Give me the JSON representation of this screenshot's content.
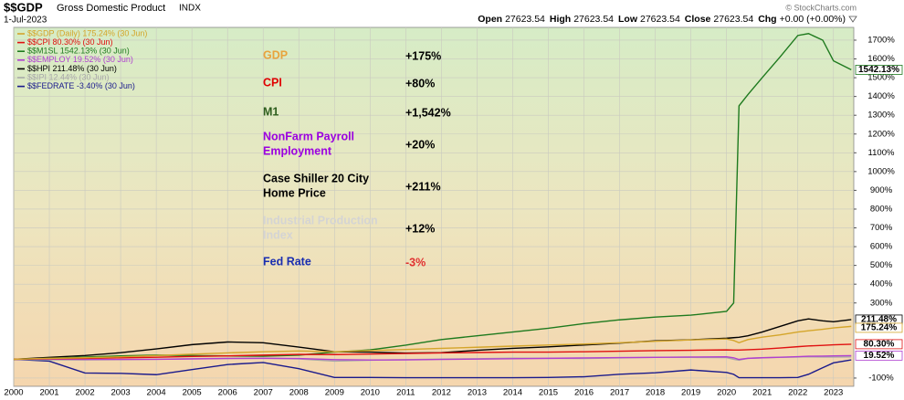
{
  "chart_data": {
    "type": "line",
    "title": "$$GDP",
    "subtitle": "Gross Domestic Product",
    "exchange": "INDX",
    "date": "1-Jul-2023",
    "credit": "© StockCharts.com",
    "quote": [
      {
        "label": "Open",
        "text": "27623.54"
      },
      {
        "label": "High",
        "text": "27623.54"
      },
      {
        "label": "Low",
        "text": "27623.54"
      },
      {
        "label": "Close",
        "text": "27623.54"
      },
      {
        "label": "Chg",
        "text": "+0.00 (+0.00%)"
      }
    ],
    "x": [
      2000,
      2001,
      2002,
      2003,
      2004,
      2005,
      2006,
      2007,
      2008,
      2009,
      2010,
      2011,
      2012,
      2013,
      2014,
      2015,
      2016,
      2017,
      2018,
      2019,
      2020,
      2020.2,
      2020.35,
      2020.6,
      2021,
      2021.5,
      2022,
      2022.3,
      2022.7,
      2023,
      2023.5
    ],
    "xlim": [
      2000,
      2023.57
    ],
    "xticks": [
      2000,
      2001,
      2002,
      2003,
      2004,
      2005,
      2006,
      2007,
      2008,
      2009,
      2010,
      2011,
      2012,
      2013,
      2014,
      2015,
      2016,
      2017,
      2018,
      2019,
      2020,
      2021,
      2022,
      2023
    ],
    "ylim": [
      -144,
      1768
    ],
    "yticks": [
      {
        "value": -100,
        "label": "-100%"
      },
      {
        "value": 300,
        "label": "300%"
      },
      {
        "value": 400,
        "label": "400%"
      },
      {
        "value": 500,
        "label": "500%"
      },
      {
        "value": 600,
        "label": "600%"
      },
      {
        "value": 700,
        "label": "700%"
      },
      {
        "value": 800,
        "label": "800%"
      },
      {
        "value": 900,
        "label": "900%"
      },
      {
        "value": 1000,
        "label": "1000%"
      },
      {
        "value": 1100,
        "label": "1100%"
      },
      {
        "value": 1200,
        "label": "1200%"
      },
      {
        "value": 1300,
        "label": "1300%"
      },
      {
        "value": 1400,
        "label": "1400%"
      },
      {
        "value": 1500,
        "label": "1500%"
      },
      {
        "value": 1600,
        "label": "1600%"
      },
      {
        "value": 1700,
        "label": "1700%"
      }
    ],
    "grid": true,
    "series": [
      {
        "name": "$$GDP (Daily) 175.24% (30 Jun)",
        "color": "#d4a52a",
        "values": [
          0,
          5,
          8,
          13,
          20,
          27,
          34,
          40,
          44,
          40,
          46,
          52,
          58,
          64,
          70,
          76,
          81,
          88,
          96,
          103,
          108,
          100,
          88,
          105,
          118,
          130,
          145,
          152,
          160,
          167,
          175.24
        ],
        "value_labels": [
          null,
          null,
          null,
          null,
          null,
          null,
          null,
          null,
          null,
          null,
          null,
          null,
          null,
          null,
          null,
          null,
          null,
          null,
          null,
          null,
          null,
          null,
          null,
          null,
          null,
          null,
          null,
          null,
          null,
          null,
          "175.24%"
        ]
      },
      {
        "name": "$$CPI 80.30% (30 Jun)",
        "color": "#e01010",
        "values": [
          0,
          3,
          5,
          8,
          11,
          15,
          18,
          22,
          26,
          25,
          28,
          31,
          34,
          36,
          38,
          38,
          40,
          43,
          46,
          48,
          50,
          49,
          49,
          51,
          54,
          60,
          67,
          71,
          74,
          77,
          80.3
        ],
        "value_labels": [
          null,
          null,
          null,
          null,
          null,
          null,
          null,
          null,
          null,
          null,
          null,
          null,
          null,
          null,
          null,
          null,
          null,
          null,
          null,
          null,
          null,
          null,
          null,
          null,
          null,
          null,
          null,
          null,
          null,
          null,
          "80.30%"
        ]
      },
      {
        "name": "$$M1SL 1542.13% (30 Jun)",
        "color": "#1e7a1e",
        "values": [
          0,
          5,
          12,
          18,
          22,
          20,
          18,
          16,
          22,
          38,
          50,
          75,
          105,
          125,
          145,
          165,
          190,
          210,
          225,
          235,
          255,
          300,
          1350,
          1410,
          1500,
          1610,
          1725,
          1735,
          1700,
          1590,
          1542.13
        ],
        "value_labels": [
          null,
          null,
          null,
          null,
          null,
          null,
          null,
          null,
          null,
          null,
          null,
          null,
          null,
          null,
          null,
          null,
          null,
          null,
          null,
          null,
          null,
          null,
          null,
          null,
          null,
          null,
          null,
          null,
          null,
          null,
          "1542.13%"
        ]
      },
      {
        "name": "$$EMPLOY 19.52% (30 Jun)",
        "color": "#b040d0",
        "values": [
          0,
          1,
          -1,
          -1,
          0,
          2,
          4,
          5,
          4,
          -2,
          -4,
          -3,
          -1,
          1,
          3,
          5,
          7,
          9,
          10,
          12,
          13,
          8,
          -1,
          5,
          8,
          11,
          14,
          16,
          17,
          18,
          19.52
        ],
        "value_labels": [
          null,
          null,
          null,
          null,
          null,
          null,
          null,
          null,
          null,
          null,
          null,
          null,
          null,
          null,
          null,
          null,
          null,
          null,
          null,
          null,
          null,
          null,
          null,
          null,
          null,
          null,
          null,
          null,
          null,
          null,
          "19.52%"
        ]
      },
      {
        "name": "$$HPI 211.48% (30 Jun)",
        "color": "#000000",
        "values": [
          0,
          10,
          20,
          35,
          55,
          78,
          92,
          88,
          65,
          40,
          38,
          33,
          35,
          48,
          58,
          66,
          76,
          86,
          98,
          104,
          112,
          115,
          117,
          125,
          145,
          175,
          205,
          215,
          205,
          200,
          211.48
        ],
        "value_labels": [
          null,
          null,
          null,
          null,
          null,
          null,
          null,
          null,
          null,
          null,
          null,
          null,
          null,
          null,
          null,
          null,
          null,
          null,
          null,
          null,
          null,
          null,
          null,
          null,
          null,
          null,
          null,
          null,
          null,
          null,
          "211.48%"
        ]
      },
      {
        "name": "$$IPI 12.44% (30 Jun)",
        "color": "#a8a8a8",
        "values": [
          0,
          -3,
          -3,
          -2,
          0,
          3,
          5,
          6,
          2,
          -10,
          -5,
          -2,
          1,
          3,
          6,
          5,
          4,
          7,
          10,
          10,
          9,
          0,
          -5,
          5,
          8,
          10,
          12,
          13,
          12,
          12,
          12.44
        ]
      },
      {
        "name": "$$FEDRATE -3.40% (30 Jun)",
        "color": "#1a1a8c",
        "values": [
          0,
          -10,
          -73,
          -75,
          -82,
          -55,
          -28,
          -17,
          -50,
          -97,
          -97,
          -98,
          -98,
          -98,
          -98,
          -97,
          -93,
          -80,
          -72,
          -57,
          -70,
          -80,
          -98,
          -98,
          -98,
          -98,
          -97,
          -80,
          -45,
          -19,
          -3.4
        ]
      }
    ],
    "annotations": [
      {
        "label": [
          "GDP"
        ],
        "color": "#e8a33d",
        "change": "+175%",
        "change_color": "#000000"
      },
      {
        "label": [
          "CPI"
        ],
        "color": "#e00000",
        "change": "+80%",
        "change_color": "#000000"
      },
      {
        "label": [
          "M1"
        ],
        "color": "#2e5e1e",
        "change": "+1,542%",
        "change_color": "#000000"
      },
      {
        "label": [
          "NonFarm Payroll",
          "Employment"
        ],
        "color": "#9b00e0",
        "change": "+20%",
        "change_color": "#000000"
      },
      {
        "label": [
          "Case Shiller 20 City",
          "Home Price"
        ],
        "color": "#000000",
        "change": "+211%",
        "change_color": "#000000"
      },
      {
        "label": [
          "Industrial Production",
          "Index"
        ],
        "color": "#d4d4d4",
        "change": "+12%",
        "change_color": "#000000"
      },
      {
        "label": [
          "Fed Rate"
        ],
        "color": "#1a2eb0",
        "change": "-3%",
        "change_color": "#e03030"
      }
    ]
  }
}
